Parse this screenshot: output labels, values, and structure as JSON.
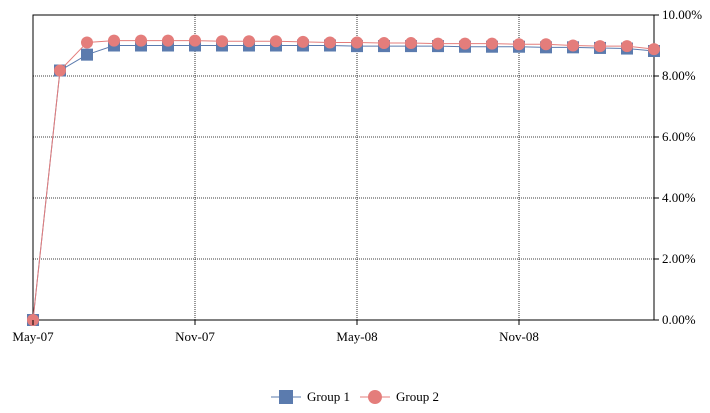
{
  "chart_data": {
    "type": "line",
    "x_tick_labels": [
      "May-07",
      "Nov-07",
      "May-08",
      "Nov-08"
    ],
    "y_tick_labels": [
      "0.00%",
      "2.00%",
      "4.00%",
      "6.00%",
      "8.00%",
      "10.00%"
    ],
    "ylim": [
      0,
      10
    ],
    "y_axis_side": "right",
    "grid": "dotted",
    "legend_position": "bottom-center",
    "x": [
      "2007-05",
      "2007-06",
      "2007-07",
      "2007-08",
      "2007-09",
      "2007-10",
      "2007-11",
      "2007-12",
      "2008-01",
      "2008-02",
      "2008-03",
      "2008-04",
      "2008-05",
      "2008-06",
      "2008-07",
      "2008-08",
      "2008-09",
      "2008-10",
      "2008-11",
      "2008-12",
      "2009-01",
      "2009-02",
      "2009-03",
      "2009-04"
    ],
    "series": [
      {
        "name": "Group 1",
        "color": "#5b7bae",
        "marker": "square",
        "values": [
          0.0,
          8.18,
          8.7,
          9.0,
          9.0,
          9.0,
          9.0,
          9.0,
          9.0,
          9.0,
          9.0,
          9.0,
          8.98,
          8.98,
          8.98,
          8.98,
          8.96,
          8.96,
          8.96,
          8.94,
          8.94,
          8.92,
          8.9,
          8.82
        ]
      },
      {
        "name": "Group 2",
        "color": "#e47d7b",
        "marker": "circle",
        "values": [
          0.0,
          8.18,
          9.1,
          9.16,
          9.16,
          9.16,
          9.16,
          9.14,
          9.14,
          9.14,
          9.12,
          9.1,
          9.1,
          9.08,
          9.08,
          9.06,
          9.06,
          9.06,
          9.04,
          9.04,
          9.0,
          8.98,
          8.98,
          8.88
        ]
      }
    ]
  }
}
